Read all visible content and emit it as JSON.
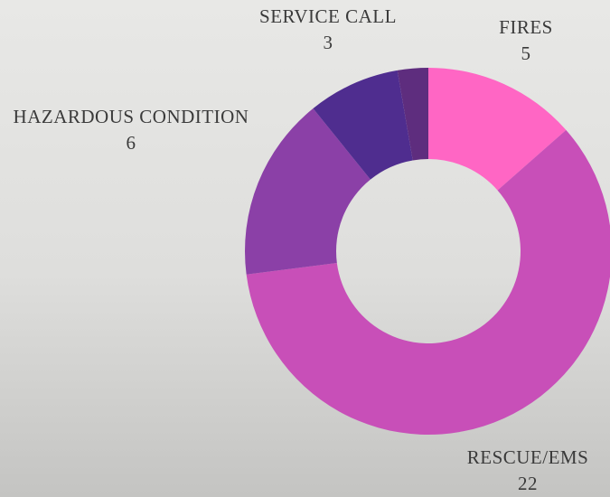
{
  "chart_data": {
    "type": "pie",
    "categories": [
      "FIRES",
      "RESCUE/EMS",
      "HAZARDOUS CONDITION",
      "SERVICE CALL",
      null
    ],
    "values": [
      5,
      22,
      6,
      3,
      1
    ],
    "colors": [
      "#ff66c4",
      "#c84fb8",
      "#8b40a7",
      "#4f2d8f",
      "#5e2d7e"
    ]
  }
}
